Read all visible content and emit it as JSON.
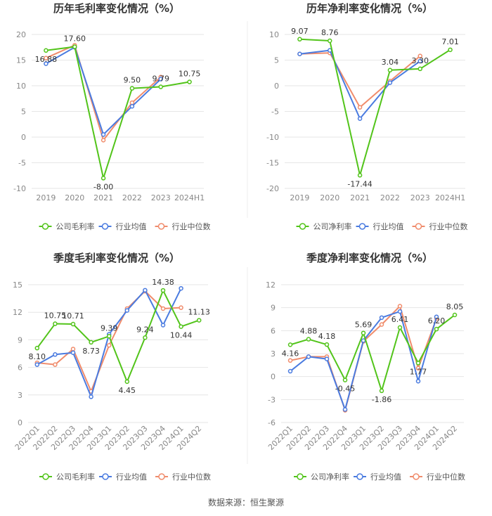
{
  "colors": {
    "company": "#52c41a",
    "industry_avg": "#4a7be0",
    "industry_median": "#f08c6c",
    "grid": "#e6e6e6",
    "axis_text": "#888888",
    "title_text": "#333333",
    "divider": "#eeeeee"
  },
  "chart_data": [
    {
      "type": "line",
      "title": "历年毛利率变化情况（%）",
      "categories": [
        "2019",
        "2020",
        "2021",
        "2022",
        "2023",
        "2024H1"
      ],
      "yticks": [
        "20",
        "15",
        "10",
        "5",
        "0",
        "-5",
        "-10"
      ],
      "ylim": [
        -10,
        20
      ],
      "rotate_ticks": false,
      "series": [
        {
          "name": "公司毛利率",
          "key": "company",
          "values": [
            16.88,
            17.6,
            -8.0,
            9.5,
            9.79,
            10.75
          ],
          "labels": [
            "16.88",
            "17.60",
            "-8.00",
            "9.50",
            "9.79",
            "10.75"
          ]
        },
        {
          "name": "行业均值",
          "key": "industry_avg",
          "values": [
            14.3,
            17.5,
            0.5,
            6.0,
            11.3,
            null
          ]
        },
        {
          "name": "行业中位数",
          "key": "industry_median",
          "values": [
            15.4,
            17.9,
            -0.6,
            6.7,
            11.7,
            null
          ]
        }
      ]
    },
    {
      "type": "line",
      "title": "历年净利率变化情况（%）",
      "categories": [
        "2019",
        "2020",
        "2021",
        "2022",
        "2023",
        "2024H1"
      ],
      "yticks": [
        "10",
        "5",
        "0",
        "-5",
        "-10",
        "-15",
        "-20"
      ],
      "ylim": [
        -20,
        10
      ],
      "rotate_ticks": false,
      "series": [
        {
          "name": "公司净利率",
          "key": "company",
          "values": [
            9.07,
            8.76,
            -17.44,
            3.04,
            3.3,
            7.01
          ],
          "labels": [
            "9.07",
            "8.76",
            "-17.44",
            "3.04",
            "3.30",
            "7.01"
          ]
        },
        {
          "name": "行业均值",
          "key": "industry_avg",
          "values": [
            6.2,
            6.9,
            -6.4,
            0.6,
            4.8,
            null
          ]
        },
        {
          "name": "行业中位数",
          "key": "industry_median",
          "values": [
            6.2,
            6.4,
            -4.2,
            0.9,
            5.8,
            null
          ]
        }
      ]
    },
    {
      "type": "line",
      "title": "季度毛利率变化情况（%）",
      "categories": [
        "2022Q1",
        "2022Q2",
        "2022Q3",
        "2022Q4",
        "2023Q1",
        "2023Q2",
        "2023Q3",
        "2023Q4",
        "2024Q1",
        "2024Q2"
      ],
      "yticks": [
        "15",
        "12",
        "9",
        "6",
        "3",
        "0"
      ],
      "ylim": [
        0,
        15
      ],
      "rotate_ticks": true,
      "series": [
        {
          "name": "公司毛利率",
          "key": "company",
          "values": [
            8.1,
            10.75,
            10.71,
            8.73,
            9.39,
            4.45,
            9.24,
            14.38,
            10.44,
            11.13
          ],
          "labels": [
            "8.10",
            "10.75",
            "10.71",
            "8.73",
            "9.39",
            "4.45",
            "9.24",
            "14.38",
            "10.44",
            "11.13"
          ]
        },
        {
          "name": "行业均值",
          "key": "industry_avg",
          "values": [
            6.3,
            7.4,
            7.6,
            2.8,
            9.6,
            12.2,
            14.4,
            10.6,
            14.6,
            null
          ]
        },
        {
          "name": "行业中位数",
          "key": "industry_median",
          "values": [
            6.5,
            6.3,
            8.0,
            3.4,
            8.4,
            12.4,
            14.3,
            12.4,
            12.5,
            null
          ]
        }
      ]
    },
    {
      "type": "line",
      "title": "季度净利率变化情况（%）",
      "categories": [
        "2022Q1",
        "2022Q2",
        "2022Q3",
        "2022Q4",
        "2023Q1",
        "2023Q2",
        "2023Q3",
        "2023Q4",
        "2024Q1",
        "2024Q2"
      ],
      "yticks": [
        "12",
        "9",
        "6",
        "3",
        "0",
        "-3",
        "-6"
      ],
      "ylim": [
        -6,
        12
      ],
      "rotate_ticks": true,
      "series": [
        {
          "name": "公司净利率",
          "key": "company",
          "values": [
            4.16,
            4.88,
            4.18,
            -0.45,
            5.69,
            -1.86,
            6.41,
            1.77,
            6.2,
            8.05
          ],
          "labels": [
            "4.16",
            "4.88",
            "4.18",
            "-0.45",
            "5.69",
            "-1.86",
            "6.41",
            "1.77",
            "6.20",
            "8.05"
          ]
        },
        {
          "name": "行业均值",
          "key": "industry_avg",
          "values": [
            0.7,
            2.6,
            2.3,
            -4.3,
            4.7,
            7.7,
            8.5,
            -0.6,
            7.8,
            null
          ]
        },
        {
          "name": "行业中位数",
          "key": "industry_median",
          "values": [
            2.1,
            2.6,
            2.6,
            -4.4,
            4.6,
            6.8,
            9.2,
            1.1,
            7.6,
            null
          ]
        }
      ]
    }
  ],
  "footer": {
    "source": "数据来源：恒生聚源"
  }
}
